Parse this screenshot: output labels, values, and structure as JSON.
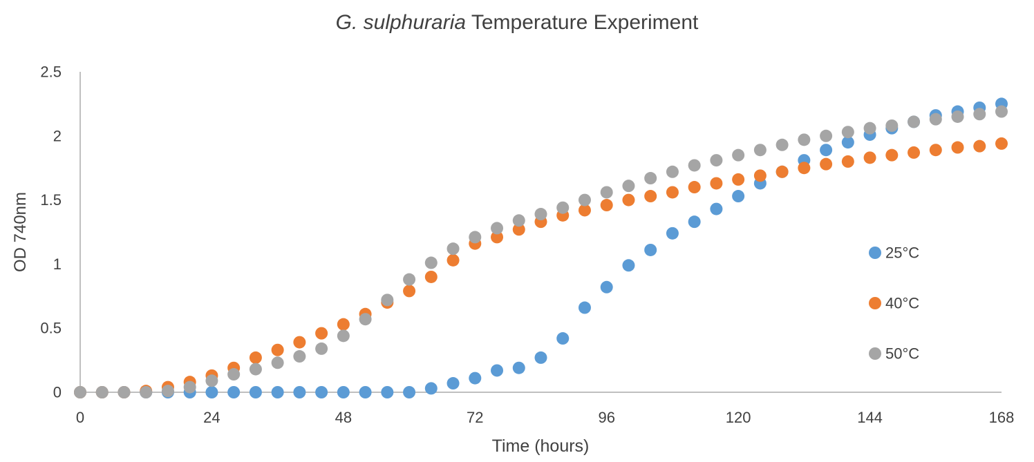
{
  "chart_data": {
    "type": "scatter",
    "title": {
      "italic": "G. sulphuraria",
      "rest": " Temperature Experiment"
    },
    "xlabel": "Time (hours)",
    "ylabel": "OD 740nm",
    "xlim": [
      0,
      168
    ],
    "ylim": [
      0,
      2.5
    ],
    "xticks": [
      0,
      24,
      48,
      72,
      96,
      120,
      144,
      168
    ],
    "yticks": [
      0,
      0.5,
      1,
      1.5,
      2,
      2.5
    ],
    "grid": false,
    "legend_position": "right",
    "x": [
      0,
      4,
      8,
      12,
      16,
      20,
      24,
      28,
      32,
      36,
      40,
      44,
      48,
      52,
      56,
      60,
      64,
      68,
      72,
      76,
      80,
      84,
      88,
      92,
      96,
      100,
      104,
      108,
      112,
      116,
      120,
      124,
      128,
      132,
      136,
      140,
      144,
      148,
      152,
      156,
      160,
      164,
      168
    ],
    "series": [
      {
        "name": "25°C",
        "color": "#5b9bd5",
        "values": [
          0,
          0,
          0,
          0,
          0,
          0,
          0,
          0,
          0,
          0,
          0,
          0,
          0,
          0,
          0,
          0,
          0.03,
          0.07,
          0.11,
          0.17,
          0.19,
          0.27,
          0.42,
          0.66,
          0.82,
          0.99,
          1.11,
          1.24,
          1.33,
          1.43,
          1.53,
          1.63,
          1.72,
          1.81,
          1.89,
          1.95,
          2.01,
          2.06,
          2.11,
          2.16,
          2.19,
          2.22,
          2.25
        ]
      },
      {
        "name": "40°C",
        "color": "#ed7d31",
        "values": [
          0,
          0,
          0,
          0.01,
          0.04,
          0.08,
          0.13,
          0.19,
          0.27,
          0.33,
          0.39,
          0.46,
          0.53,
          0.61,
          0.7,
          0.79,
          0.9,
          1.03,
          1.16,
          1.21,
          1.27,
          1.33,
          1.38,
          1.42,
          1.46,
          1.5,
          1.53,
          1.56,
          1.6,
          1.63,
          1.66,
          1.69,
          1.72,
          1.75,
          1.78,
          1.8,
          1.83,
          1.85,
          1.87,
          1.89,
          1.91,
          1.92,
          1.94
        ]
      },
      {
        "name": "50°C",
        "color": "#a5a5a5",
        "values": [
          0,
          0,
          0,
          0,
          0.01,
          0.04,
          0.09,
          0.14,
          0.18,
          0.23,
          0.28,
          0.34,
          0.44,
          0.57,
          0.72,
          0.88,
          1.01,
          1.12,
          1.21,
          1.28,
          1.34,
          1.39,
          1.44,
          1.5,
          1.56,
          1.61,
          1.67,
          1.72,
          1.77,
          1.81,
          1.85,
          1.89,
          1.93,
          1.97,
          2,
          2.03,
          2.06,
          2.08,
          2.11,
          2.13,
          2.15,
          2.17,
          2.19
        ]
      }
    ]
  }
}
